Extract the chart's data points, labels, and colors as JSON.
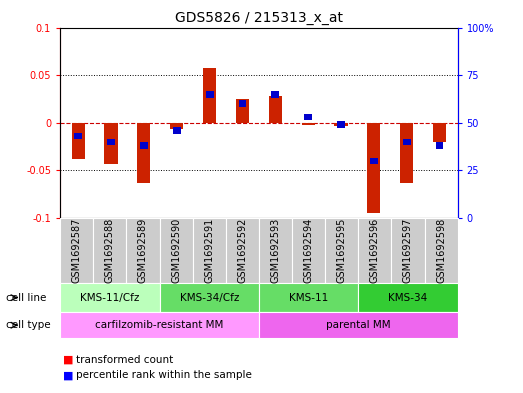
{
  "title": "GDS5826 / 215313_x_at",
  "samples": [
    "GSM1692587",
    "GSM1692588",
    "GSM1692589",
    "GSM1692590",
    "GSM1692591",
    "GSM1692592",
    "GSM1692593",
    "GSM1692594",
    "GSM1692595",
    "GSM1692596",
    "GSM1692597",
    "GSM1692598"
  ],
  "red_values": [
    -0.038,
    -0.043,
    -0.063,
    -0.006,
    0.058,
    0.025,
    0.028,
    -0.002,
    -0.003,
    -0.095,
    -0.063,
    -0.02
  ],
  "blue_values_pct": [
    43,
    40,
    38,
    46,
    65,
    60,
    65,
    53,
    49,
    30,
    40,
    38
  ],
  "ylim_left": [
    -0.1,
    0.1
  ],
  "ylim_right": [
    0,
    100
  ],
  "yticks_left": [
    -0.1,
    -0.05,
    0,
    0.05,
    0.1
  ],
  "yticks_right": [
    0,
    25,
    50,
    75,
    100
  ],
  "ytick_labels_left": [
    "-0.1",
    "-0.05",
    "0",
    "0.05",
    "0.1"
  ],
  "ytick_labels_right": [
    "0",
    "25",
    "50",
    "75",
    "100%"
  ],
  "cell_line_groups": [
    {
      "label": "KMS-11/Cfz",
      "start": 0,
      "end": 3,
      "color": "#bbffbb"
    },
    {
      "label": "KMS-34/Cfz",
      "start": 3,
      "end": 6,
      "color": "#66dd66"
    },
    {
      "label": "KMS-11",
      "start": 6,
      "end": 9,
      "color": "#66dd66"
    },
    {
      "label": "KMS-34",
      "start": 9,
      "end": 12,
      "color": "#33cc33"
    }
  ],
  "cell_type_groups": [
    {
      "label": "carfilzomib-resistant MM",
      "start": 0,
      "end": 6,
      "color": "#ff99ff"
    },
    {
      "label": "parental MM",
      "start": 6,
      "end": 12,
      "color": "#ee66ee"
    }
  ],
  "bar_color": "#cc2200",
  "marker_color": "#0000cc",
  "zero_line_color": "#cc0000",
  "bg_color": "#ffffff",
  "title_fontsize": 10,
  "tick_fontsize": 7,
  "ann_fontsize": 7.5
}
